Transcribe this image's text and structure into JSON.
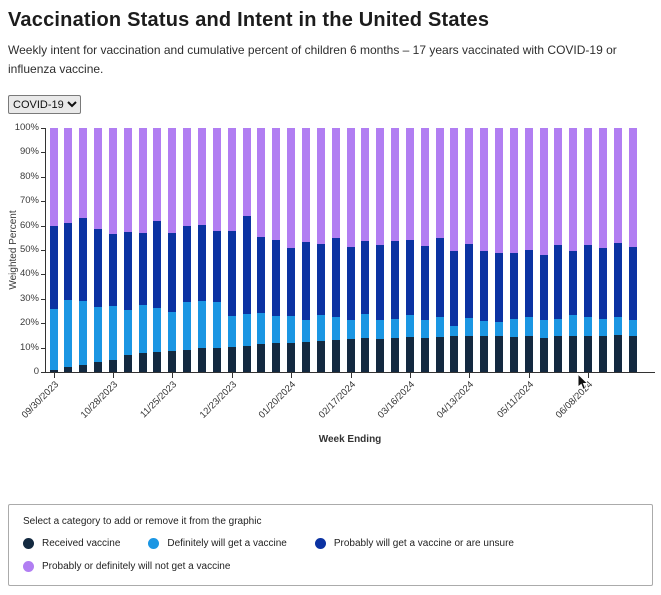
{
  "page": {
    "title": "Vaccination Status and Intent in the United States",
    "subtitle": "Weekly intent for vaccination and cumulative percent of children 6 months – 17 years vaccinated with COVID-19 or influenza vaccine."
  },
  "vaccine_select": {
    "value": "COVID-19",
    "options": [
      "COVID-19"
    ]
  },
  "chart_data": {
    "type": "bar",
    "stacked": true,
    "xlabel": "Week Ending",
    "ylabel": "Weighted Percent",
    "ylim": [
      0,
      100
    ],
    "grid": false,
    "legend_position": "bottom",
    "legend_note": "Select a category to add or remove it from the graphic",
    "y_ticks": [
      "0",
      "10%",
      "20%",
      "30%",
      "40%",
      "50%",
      "60%",
      "70%",
      "80%",
      "90%",
      "100%"
    ],
    "x_tick_every": 4,
    "x_tick_labels": [
      "09/30/2023",
      "10/28/2023",
      "11/25/2023",
      "12/23/2023",
      "01/20/2024",
      "02/17/2024",
      "03/16/2024",
      "04/13/2024",
      "05/11/2024",
      "06/08/2024"
    ],
    "categories": [
      "09/30/2023",
      "10/07/2023",
      "10/14/2023",
      "10/21/2023",
      "10/28/2023",
      "11/04/2023",
      "11/11/2023",
      "11/18/2023",
      "11/25/2023",
      "12/02/2023",
      "12/09/2023",
      "12/16/2023",
      "12/23/2023",
      "12/30/2023",
      "01/06/2024",
      "01/13/2024",
      "01/20/2024",
      "01/27/2024",
      "02/03/2024",
      "02/10/2024",
      "02/17/2024",
      "02/24/2024",
      "03/02/2024",
      "03/09/2024",
      "03/16/2024",
      "03/23/2024",
      "03/30/2024",
      "04/06/2024",
      "04/13/2024",
      "04/20/2024",
      "04/27/2024",
      "05/04/2024",
      "05/11/2024",
      "05/18/2024",
      "05/25/2024",
      "06/01/2024",
      "06/08/2024",
      "06/15/2024",
      "06/22/2024",
      "06/29/2024"
    ],
    "series": [
      {
        "name": "Received vaccine",
        "color": "#132940",
        "values": [
          1.0,
          2.1,
          3.0,
          4.1,
          5.1,
          6.9,
          7.6,
          8.3,
          8.7,
          9.2,
          9.7,
          10.0,
          10.3,
          10.6,
          11.4,
          11.7,
          12.0,
          12.4,
          12.8,
          13.1,
          13.4,
          13.9,
          13.5,
          13.9,
          14.3,
          13.9,
          14.3,
          14.6,
          14.6,
          14.9,
          14.9,
          14.3,
          14.6,
          13.9,
          14.6,
          14.9,
          14.6,
          14.9,
          15.3,
          14.9
        ]
      },
      {
        "name": "Definitely will get a vaccine",
        "color": "#1b96e3",
        "values": [
          24.8,
          27.6,
          26.0,
          22.4,
          21.8,
          18.6,
          20.0,
          17.9,
          16.1,
          19.4,
          19.3,
          18.7,
          12.5,
          13.1,
          12.7,
          11.3,
          10.8,
          9.0,
          10.6,
          9.4,
          8.0,
          9.7,
          8.0,
          7.9,
          8.9,
          7.6,
          8.3,
          4.4,
          7.6,
          5.9,
          5.5,
          7.5,
          8.0,
          7.3,
          7.2,
          8.3,
          8.0,
          6.9,
          7.3,
          6.6
        ]
      },
      {
        "name": "Probably will get a vaccine or are unsure",
        "color": "#0b32a2",
        "values": [
          34.2,
          31.3,
          34.0,
          32.1,
          29.7,
          31.7,
          29.2,
          35.8,
          32.0,
          31.1,
          31.3,
          29.2,
          35.1,
          40.3,
          31.1,
          31.2,
          28.2,
          32.0,
          29.0,
          32.3,
          30.0,
          29.9,
          30.6,
          32.1,
          31.0,
          30.1,
          32.3,
          30.4,
          30.4,
          29.0,
          28.4,
          26.9,
          27.6,
          26.8,
          30.3,
          26.5,
          29.5,
          29.0,
          30.4,
          29.7
        ]
      },
      {
        "name": "Probably or definitely will not get a vaccine",
        "color": "#b17ef2",
        "values": [
          40.0,
          39.0,
          37.0,
          41.4,
          43.4,
          42.8,
          43.2,
          38.0,
          43.2,
          40.3,
          39.7,
          42.1,
          42.1,
          36.0,
          44.8,
          45.8,
          49.0,
          46.6,
          47.6,
          45.2,
          48.6,
          46.5,
          47.9,
          46.1,
          45.8,
          48.4,
          45.1,
          50.6,
          47.4,
          50.2,
          51.2,
          51.3,
          49.8,
          52.0,
          47.9,
          50.3,
          47.9,
          49.2,
          47.0,
          48.8
        ]
      }
    ]
  }
}
